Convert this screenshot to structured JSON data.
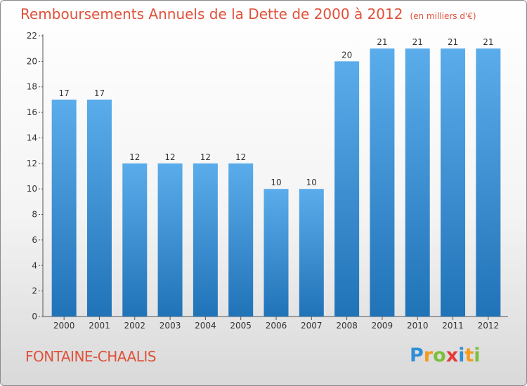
{
  "title": "Remboursements Annuels de la Dette de 2000 à 2012",
  "subtitle": "(en milliers d'€)",
  "location": "FONTAINE-CHAALIS",
  "logo": {
    "letters": [
      "P",
      "r",
      "o",
      "x",
      "i",
      "t",
      "i"
    ],
    "colors": [
      "#2e8fd6",
      "#f39c1f",
      "#7bbf3a",
      "#e53a3a",
      "#2e8fd6",
      "#f39c1f",
      "#7bbf3a"
    ]
  },
  "colors": {
    "bar_top": "#5aacea",
    "bar_bottom": "#2173b8",
    "axis": "#555555",
    "title": "#e0503a"
  },
  "chart_data": {
    "type": "bar",
    "title": "Remboursements Annuels de la Dette de 2000 à 2012",
    "categories": [
      "2000",
      "2001",
      "2002",
      "2003",
      "2004",
      "2005",
      "2006",
      "2007",
      "2008",
      "2009",
      "2010",
      "2011",
      "2012"
    ],
    "values": [
      17,
      17,
      12,
      12,
      12,
      12,
      10,
      10,
      20,
      21,
      21,
      21,
      21
    ],
    "value_labels": [
      "17",
      "17",
      "12",
      "12",
      "12",
      "12",
      "10",
      "10",
      "20",
      "21",
      "21",
      "21",
      "21"
    ],
    "ylim": [
      0,
      22
    ],
    "yticks": [
      0,
      2,
      4,
      6,
      8,
      10,
      12,
      14,
      16,
      18,
      20,
      22
    ],
    "ytick_labels": [
      "0",
      "2",
      "4",
      "6",
      "8",
      "10",
      "12",
      "14",
      "16",
      "18",
      "20",
      "22"
    ],
    "xlabel": "",
    "ylabel": "",
    "grid": false
  }
}
